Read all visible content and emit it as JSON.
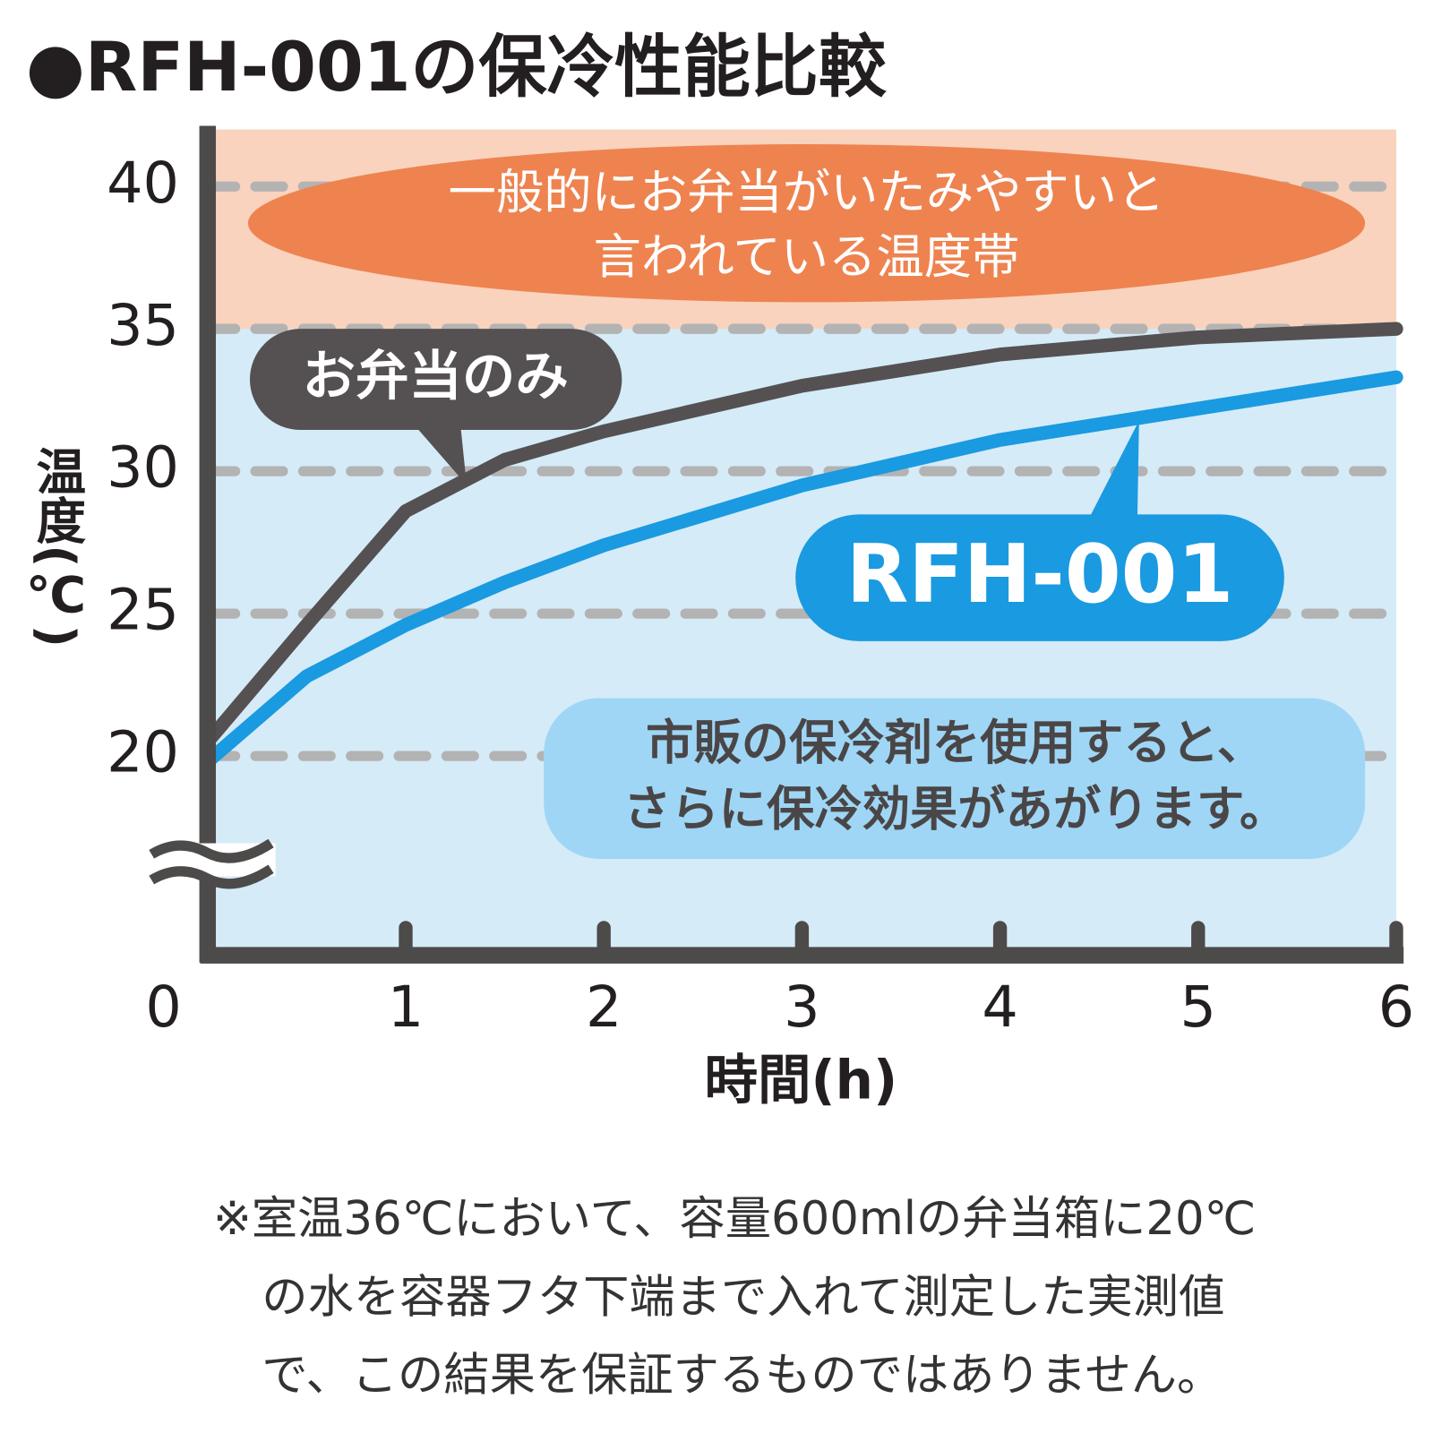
{
  "chart_data": {
    "type": "line",
    "title": "●RFH-001の保冷性能比較",
    "x_label": "時間(h)",
    "y_label": "温度(℃)",
    "x": [
      0,
      0.5,
      1,
      1.5,
      2,
      3,
      4,
      5,
      6
    ],
    "series": [
      {
        "name": "お弁当のみ",
        "color": "#555152",
        "values": [
          20.5,
          24.6,
          28.6,
          30.4,
          31.4,
          33,
          34.1,
          34.7,
          35
        ]
      },
      {
        "name": "RFH-001",
        "color": "#1a9ae0",
        "values": [
          19.8,
          22.8,
          24.6,
          26.1,
          27.4,
          29.5,
          31.1,
          32.2,
          33.3
        ]
      }
    ],
    "xlim": [
      0,
      6
    ],
    "xticks": [
      0,
      1,
      2,
      3,
      4,
      5,
      6
    ],
    "ylim": [
      13,
      42
    ],
    "yticks": [
      20,
      25,
      30,
      35,
      40
    ],
    "grid": true,
    "highlight_band": {
      "from": 35,
      "to": 42,
      "color": "#f9d3bd"
    },
    "band_label": [
      "一般的にお弁当がいたみやすいと",
      "言われている温度帯"
    ],
    "note": [
      "市販の保冷剤を使用すると、",
      "さらに保冷効果があがります。"
    ],
    "footnote": [
      "※室温36℃において、容量600mlの弁当箱に20℃",
      "の水を容器フタ下端まで入れて測定した実測値",
      "で、この結果を保証するものではありません。"
    ]
  }
}
